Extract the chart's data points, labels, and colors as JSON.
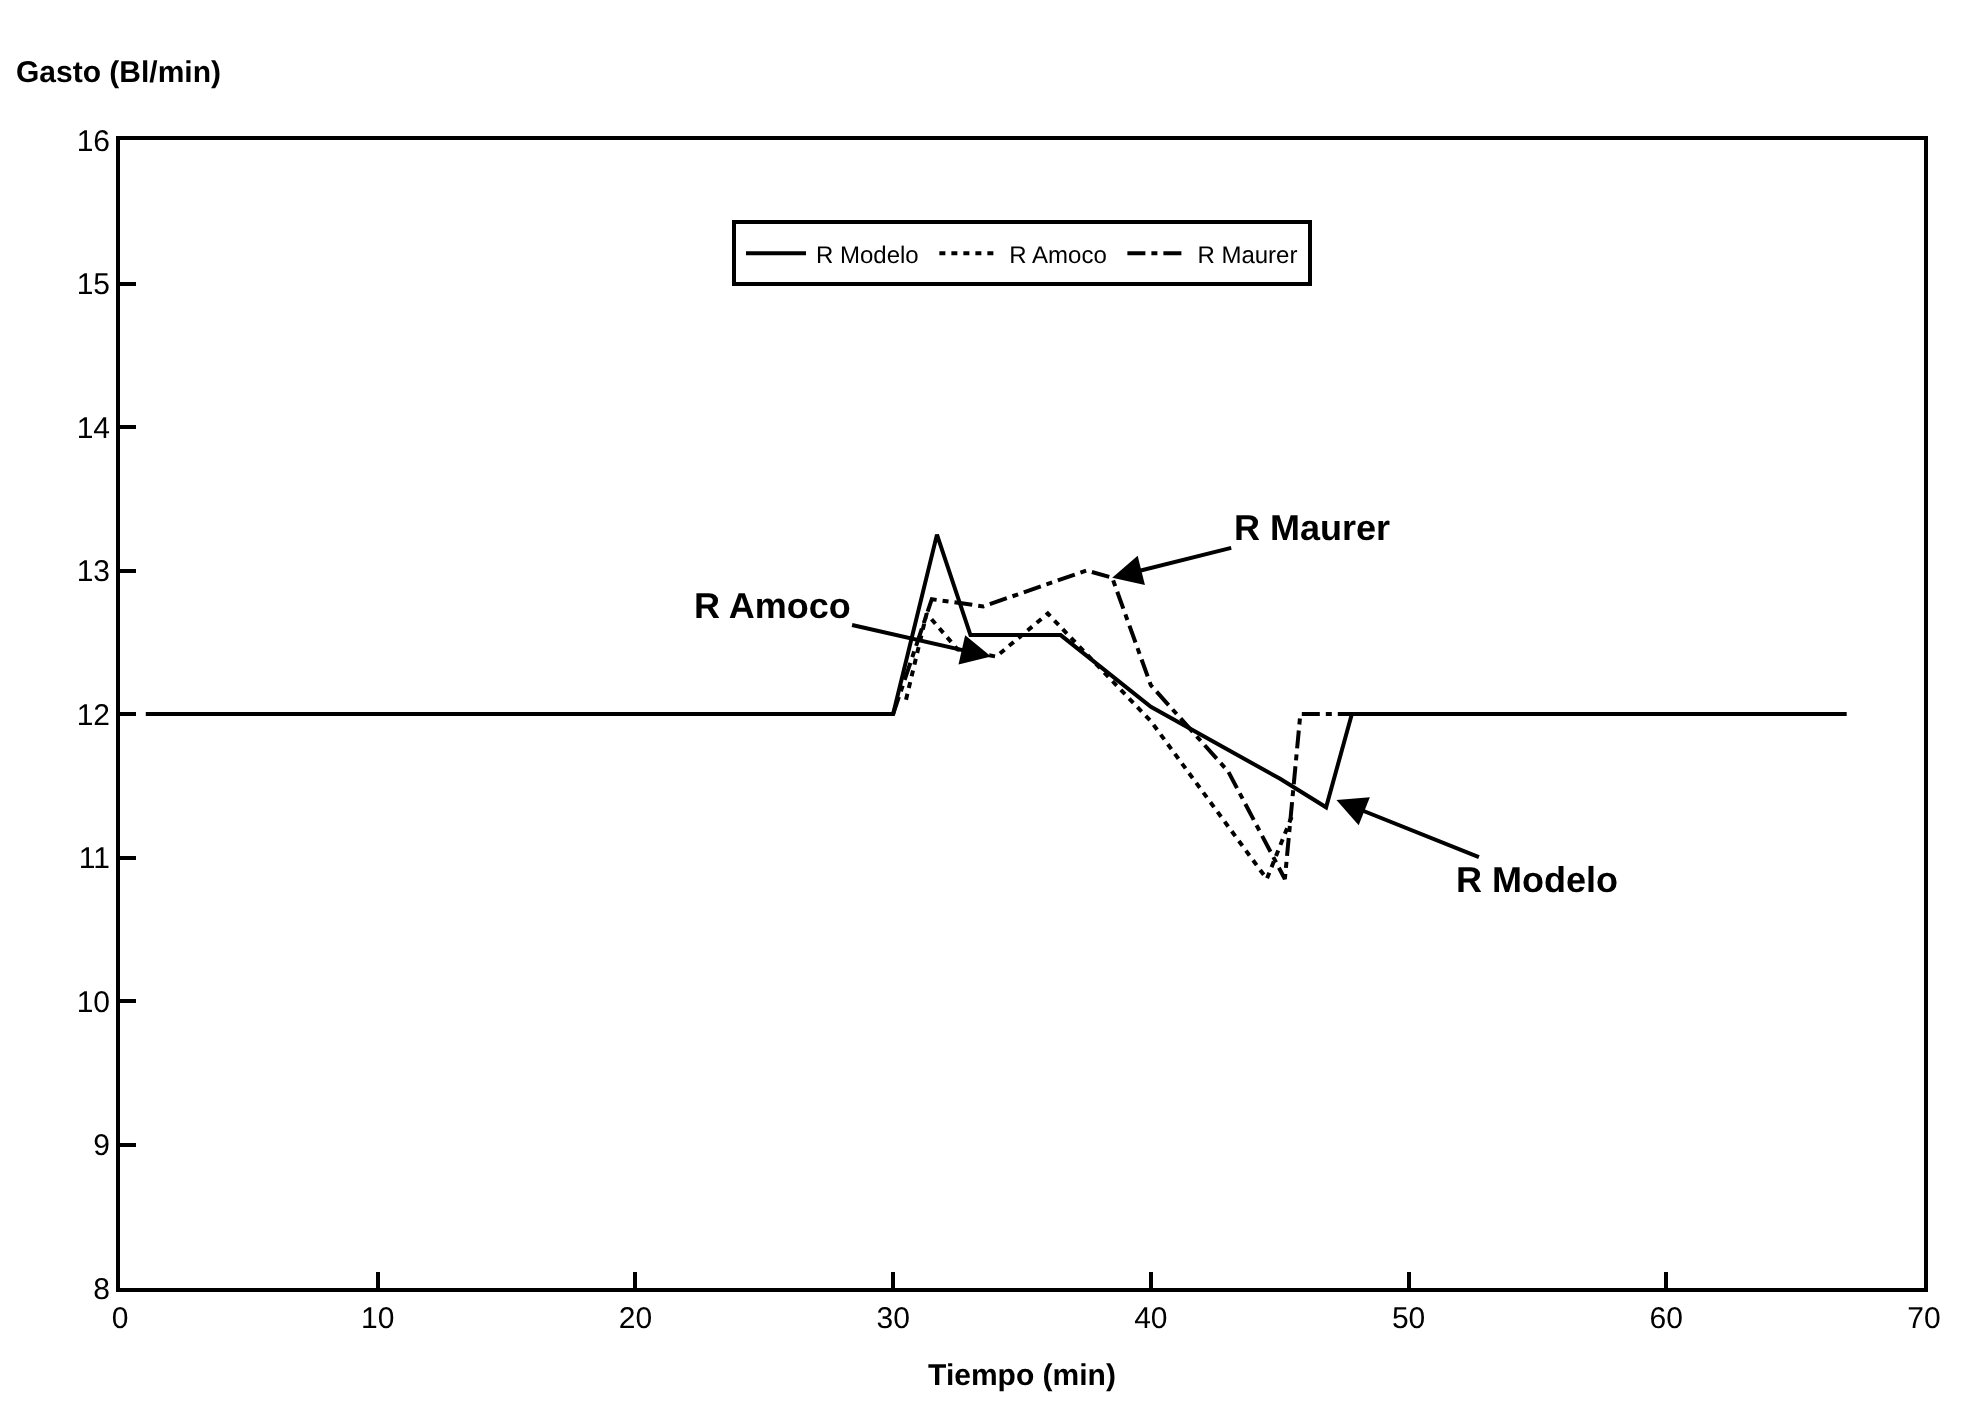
{
  "chart_data": {
    "type": "line",
    "xlabel": "Tiempo (min)",
    "ylabel": "Gasto (Bl/min)",
    "xlim": [
      0,
      70
    ],
    "xticks": [
      0,
      10,
      20,
      30,
      40,
      50,
      60,
      70
    ],
    "ylim": [
      8,
      16
    ],
    "yticks": [
      8,
      9,
      10,
      11,
      12,
      13,
      14,
      15,
      16
    ],
    "legend": "top",
    "marker": "none",
    "series": [
      {
        "name": "R Modelo",
        "color": "#000000",
        "line_style": "solid",
        "x": [
          1,
          30,
          31.7,
          33,
          36.5,
          40,
          42,
          45,
          46.8,
          47.8,
          67
        ],
        "values": [
          12,
          12,
          13.25,
          12.55,
          12.55,
          12.05,
          11.85,
          11.55,
          11.35,
          12,
          12
        ]
      },
      {
        "name": "R Amoco",
        "color": "#000000",
        "line_style": "dotted",
        "x": [
          30.5,
          31.3,
          32.5,
          34,
          36,
          40,
          44.5,
          45.5
        ],
        "values": [
          12.1,
          12.7,
          12.45,
          12.4,
          12.7,
          11.95,
          10.85,
          11.3
        ]
      },
      {
        "name": "R Maurer",
        "color": "#000000",
        "line_style": "dashdot",
        "x": [
          30,
          31.5,
          33.5,
          37.5,
          38.5,
          40,
          43,
          45.2,
          45.8,
          48
        ],
        "values": [
          12,
          12.8,
          12.75,
          13.0,
          12.95,
          12.2,
          11.6,
          10.85,
          12,
          12
        ]
      }
    ],
    "annotations": [
      {
        "text": "R Amoco",
        "x": 33.8,
        "y": 12.4
      },
      {
        "text": "R Maurer",
        "x": 38.5,
        "y": 12.95
      },
      {
        "text": "R Modelo",
        "x": 47.2,
        "y": 11.4
      }
    ]
  }
}
